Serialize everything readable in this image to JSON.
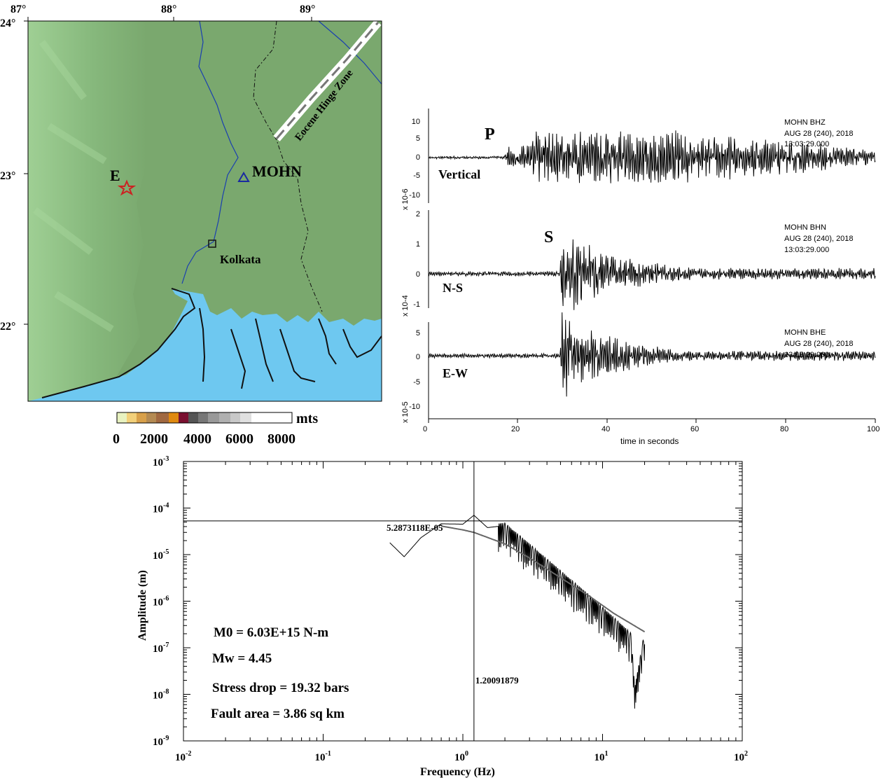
{
  "map": {
    "lon_ticks": [
      "87°",
      "88°",
      "89°"
    ],
    "lat_ticks": [
      "24°",
      "23°",
      "22°"
    ],
    "station_label": "MOHN",
    "event_label": "E",
    "city_label": "Kolkata",
    "zone_label": "Eocene Hinge Zone",
    "colorbar_unit": "mts",
    "colorbar_ticks": [
      "0",
      "2000",
      "4000",
      "6000",
      "8000"
    ],
    "colors": {
      "land": "#7aa86e",
      "land_light": "#94c48a",
      "sea": "#6ec8f0",
      "river": "#1a3fb0",
      "event_star": "#cc2222",
      "station_triangle": "#1a2aa0"
    }
  },
  "seismograms": {
    "xlabel": "time in seconds",
    "x_ticks": [
      "0",
      "20",
      "40",
      "60",
      "80",
      "100"
    ],
    "traces": [
      {
        "component": "Vertical",
        "phase": "P",
        "scale": "x 10-6",
        "header": [
          "MOHN  BHZ",
          "AUG 28 (240), 2018",
          "13:03:29.000"
        ],
        "y_ticks": [
          "10",
          "5",
          "0",
          "-5",
          "-10"
        ]
      },
      {
        "component": "N-S",
        "phase": "S",
        "scale": "x 10-4",
        "header": [
          "MOHN  BHN",
          "AUG 28 (240), 2018",
          "13:03:29.000"
        ],
        "y_ticks": [
          "2",
          "1",
          "0",
          "-1"
        ]
      },
      {
        "component": "E-W",
        "phase": "",
        "scale": "x 10-5",
        "header": [
          "MOHN  BHE",
          "AUG 28 (240), 2018",
          "13:03:29.000"
        ],
        "y_ticks": [
          "5",
          "0",
          "-5",
          "-10"
        ]
      }
    ]
  },
  "chart_data": {
    "type": "line",
    "xlabel": "Frequency (Hz)",
    "ylabel": "Amplitude (m)",
    "xscale": "log",
    "yscale": "log",
    "xlim": [
      0.01,
      100
    ],
    "ylim": [
      1e-09,
      0.001
    ],
    "x_ticks": [
      "10-2",
      "10-1",
      "100",
      "101",
      "102"
    ],
    "y_ticks": [
      "10-3",
      "10-4",
      "10-5",
      "10-6",
      "10-7",
      "10-8",
      "10-9"
    ],
    "corner_frequency": 1.20091879,
    "corner_frequency_label": "1.20091879",
    "omega0": 5.2873118e-05,
    "omega0_label": "5.2873118E-05",
    "annotations": [
      "M0 = 6.03E+15 N-m",
      "Mw = 4.45",
      "Stress drop = 19.32 bars",
      "Fault area = 3.86 sq km"
    ],
    "series": [
      {
        "values": [
          [
            0.3,
            1.8e-05
          ],
          [
            0.38,
            9e-06
          ],
          [
            0.5,
            2.3e-05
          ],
          [
            0.7,
            4.6e-05
          ],
          [
            1.0,
            4.5e-05
          ],
          [
            1.2,
            7e-05
          ],
          [
            1.5,
            3.8e-05
          ],
          [
            2.0,
            4.2e-05
          ],
          [
            3.0,
            1.5e-05
          ],
          [
            5.0,
            4e-06
          ],
          [
            8.0,
            1.2e-06
          ],
          [
            12.0,
            4e-07
          ],
          [
            16.0,
            1.8e-07
          ],
          [
            17.0,
            1.2e-08
          ],
          [
            20.0,
            2e-07
          ]
        ]
      },
      {
        "values": [
          [
            0.7,
            4.1e-05
          ],
          [
            1.0,
            3.4e-05
          ],
          [
            1.2,
            3e-05
          ],
          [
            2.0,
            1.7e-05
          ],
          [
            3.0,
            8.5e-06
          ],
          [
            5.0,
            3.2e-06
          ],
          [
            8.0,
            1.3e-06
          ],
          [
            12.0,
            5.5e-07
          ],
          [
            20.0,
            2.2e-07
          ]
        ]
      }
    ]
  }
}
